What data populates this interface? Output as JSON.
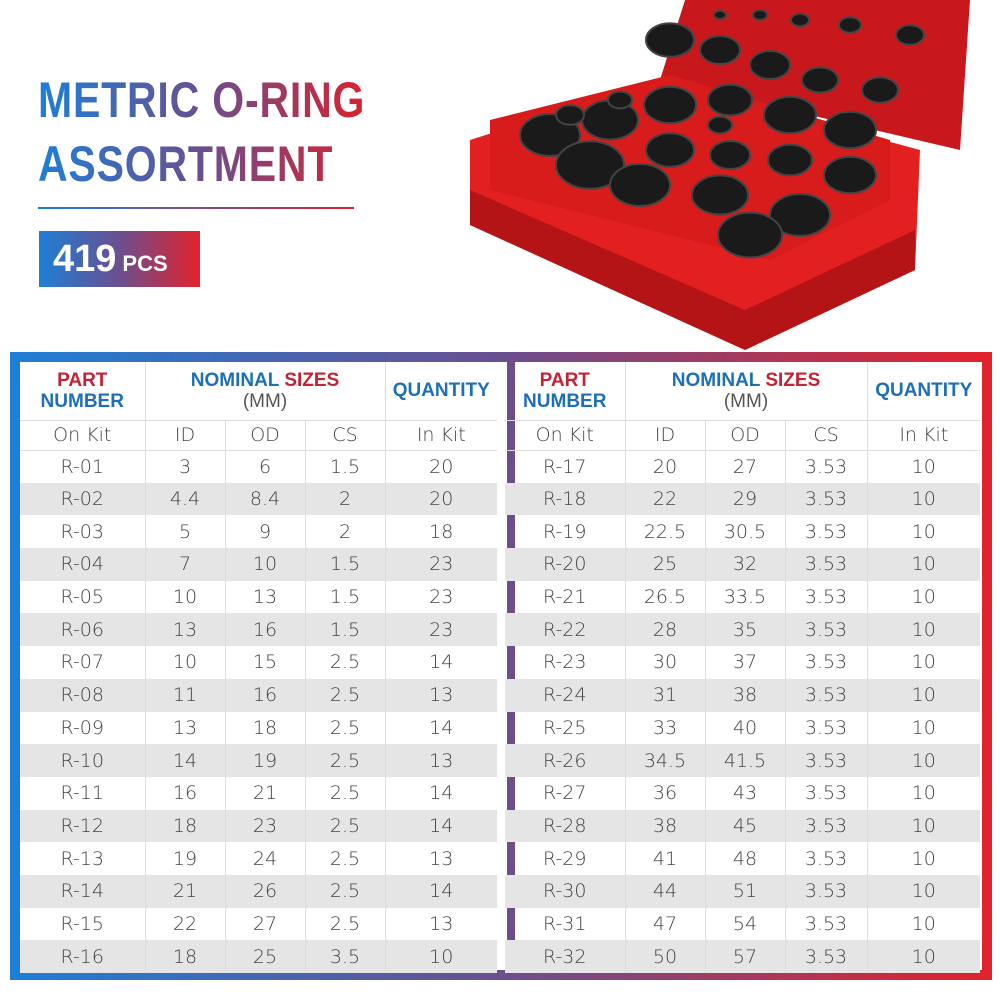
{
  "title": {
    "line1": "METRIC O-RING",
    "line2": "ASSORTMENT"
  },
  "badge": {
    "count": "419",
    "unit": "PCS"
  },
  "colors": {
    "blue": "#1e7fd6",
    "purple": "#6a4f8f",
    "red": "#e3222b",
    "box_red": "#e01b1b"
  },
  "table": {
    "headers": {
      "part_a": "PART",
      "part_b": "NUMBER",
      "sizes_a": "NOMINAL",
      "sizes_b": "SIZES",
      "sizes_unit": "(MM)",
      "quantity": "QUANTITY"
    },
    "subheaders": [
      "On Kit",
      "ID",
      "OD",
      "CS",
      "In Kit"
    ],
    "left_rows": [
      [
        "R-01",
        "3",
        "6",
        "1.5",
        "20"
      ],
      [
        "R-02",
        "4.4",
        "8.4",
        "2",
        "20"
      ],
      [
        "R-03",
        "5",
        "9",
        "2",
        "18"
      ],
      [
        "R-04",
        "7",
        "10",
        "1.5",
        "23"
      ],
      [
        "R-05",
        "10",
        "13",
        "1.5",
        "23"
      ],
      [
        "R-06",
        "13",
        "16",
        "1.5",
        "23"
      ],
      [
        "R-07",
        "10",
        "15",
        "2.5",
        "14"
      ],
      [
        "R-08",
        "11",
        "16",
        "2.5",
        "13"
      ],
      [
        "R-09",
        "13",
        "18",
        "2.5",
        "14"
      ],
      [
        "R-10",
        "14",
        "19",
        "2.5",
        "13"
      ],
      [
        "R-11",
        "16",
        "21",
        "2.5",
        "14"
      ],
      [
        "R-12",
        "18",
        "23",
        "2.5",
        "14"
      ],
      [
        "R-13",
        "19",
        "24",
        "2.5",
        "13"
      ],
      [
        "R-14",
        "21",
        "26",
        "2.5",
        "14"
      ],
      [
        "R-15",
        "22",
        "27",
        "2.5",
        "13"
      ],
      [
        "R-16",
        "18",
        "25",
        "3.5",
        "10"
      ]
    ],
    "right_rows": [
      [
        "R-17",
        "20",
        "27",
        "3.53",
        "10"
      ],
      [
        "R-18",
        "22",
        "29",
        "3.53",
        "10"
      ],
      [
        "R-19",
        "22.5",
        "30.5",
        "3.53",
        "10"
      ],
      [
        "R-20",
        "25",
        "32",
        "3.53",
        "10"
      ],
      [
        "R-21",
        "26.5",
        "33.5",
        "3.53",
        "10"
      ],
      [
        "R-22",
        "28",
        "35",
        "3.53",
        "10"
      ],
      [
        "R-23",
        "30",
        "37",
        "3.53",
        "10"
      ],
      [
        "R-24",
        "31",
        "38",
        "3.53",
        "10"
      ],
      [
        "R-25",
        "33",
        "40",
        "3.53",
        "10"
      ],
      [
        "R-26",
        "34.5",
        "41.5",
        "3.53",
        "10"
      ],
      [
        "R-27",
        "36",
        "43",
        "3.53",
        "10"
      ],
      [
        "R-28",
        "38",
        "45",
        "3.53",
        "10"
      ],
      [
        "R-29",
        "41",
        "48",
        "3.53",
        "10"
      ],
      [
        "R-30",
        "44",
        "51",
        "3.53",
        "10"
      ],
      [
        "R-31",
        "47",
        "54",
        "3.53",
        "10"
      ],
      [
        "R-32",
        "50",
        "57",
        "3.53",
        "10"
      ]
    ]
  }
}
